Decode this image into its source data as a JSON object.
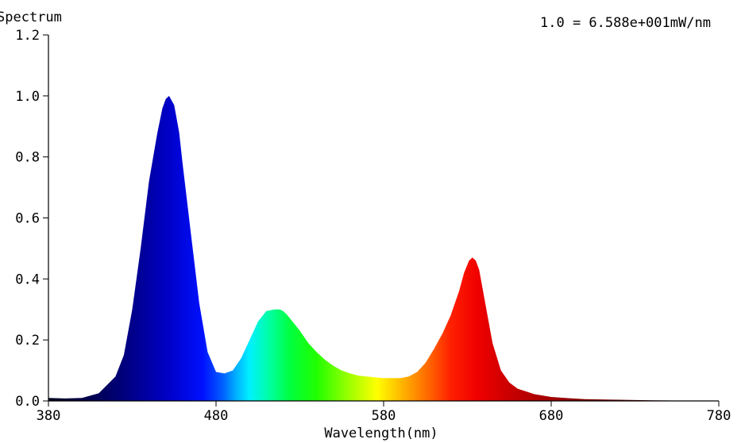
{
  "chart_data": {
    "type": "area",
    "title": "Spectrum",
    "scale_note": "1.0 = 6.588e+001mW/nm",
    "xlabel": "Wavelength(nm)",
    "ylabel": "",
    "xlim": [
      380,
      780
    ],
    "ylim": [
      0.0,
      1.2
    ],
    "x_ticks": [
      "380",
      "480",
      "580",
      "680",
      "780"
    ],
    "y_ticks": [
      "0.0",
      "0.2",
      "0.4",
      "0.6",
      "0.8",
      "1.0",
      "1.2"
    ],
    "grid": false,
    "fill": "wavelength-colored spectrum",
    "series": [
      {
        "x": [
          380,
          390,
          400,
          410,
          420,
          425,
          430,
          435,
          440,
          445,
          448,
          450,
          452,
          455,
          458,
          460,
          465,
          470,
          475,
          480,
          485,
          490,
          495,
          500,
          505,
          510,
          515,
          518,
          520,
          522,
          525,
          530,
          535,
          540,
          545,
          550,
          555,
          560,
          565,
          570,
          575,
          580,
          585,
          590,
          595,
          600,
          605,
          610,
          615,
          620,
          625,
          628,
          631,
          633,
          635,
          637,
          640,
          645,
          650,
          655,
          660,
          670,
          680,
          690,
          700,
          720,
          740,
          760,
          780
        ],
        "y": [
          0.01,
          0.008,
          0.01,
          0.025,
          0.08,
          0.15,
          0.3,
          0.5,
          0.72,
          0.88,
          0.96,
          0.99,
          1.0,
          0.97,
          0.88,
          0.78,
          0.55,
          0.32,
          0.16,
          0.095,
          0.09,
          0.1,
          0.14,
          0.2,
          0.26,
          0.295,
          0.3,
          0.3,
          0.295,
          0.285,
          0.265,
          0.23,
          0.19,
          0.16,
          0.135,
          0.115,
          0.1,
          0.09,
          0.083,
          0.08,
          0.077,
          0.075,
          0.075,
          0.075,
          0.08,
          0.095,
          0.125,
          0.17,
          0.22,
          0.28,
          0.36,
          0.42,
          0.46,
          0.47,
          0.46,
          0.43,
          0.34,
          0.19,
          0.1,
          0.06,
          0.04,
          0.022,
          0.013,
          0.009,
          0.006,
          0.004,
          0.002,
          0.001,
          0.0
        ]
      }
    ]
  }
}
